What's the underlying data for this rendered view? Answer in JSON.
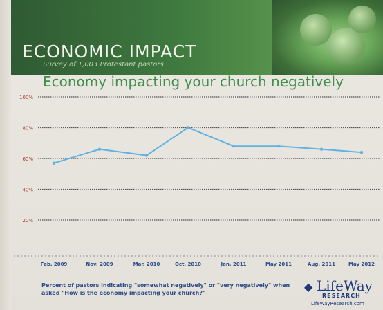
{
  "banner": {
    "title": "ECONOMIC IMPACT",
    "subtitle": "Survey of 1,003 Protestant pastors"
  },
  "chart_data": {
    "type": "line",
    "title": "Economy impacting your church negatively",
    "categories": [
      "Feb. 2009",
      "Nov. 2009",
      "Mar. 2010",
      "Oct. 2010",
      "Jan. 2011",
      "May 2011",
      "Aug. 2011",
      "May 2012"
    ],
    "series": [
      {
        "values": [
          57,
          66,
          62,
          80,
          68,
          68,
          66,
          64
        ]
      }
    ],
    "yticks": [
      "100%",
      "80%",
      "60%",
      "40%",
      "20%"
    ],
    "ylim": [
      0,
      100
    ],
    "line_color": "#5fb3e3",
    "grid": true
  },
  "footer": {
    "note": "Percent of pastors indicating \"somewhat negatively\" or \"very negatively\" when asked \"How is the economy impacting your church?\"",
    "logo_name": "LifeWay",
    "logo_sub": "RESEARCH",
    "logo_url": "LifeWayResearch.com"
  },
  "colors": {
    "banner": "#3f7a3f",
    "title": "#3f8f4a"
  }
}
